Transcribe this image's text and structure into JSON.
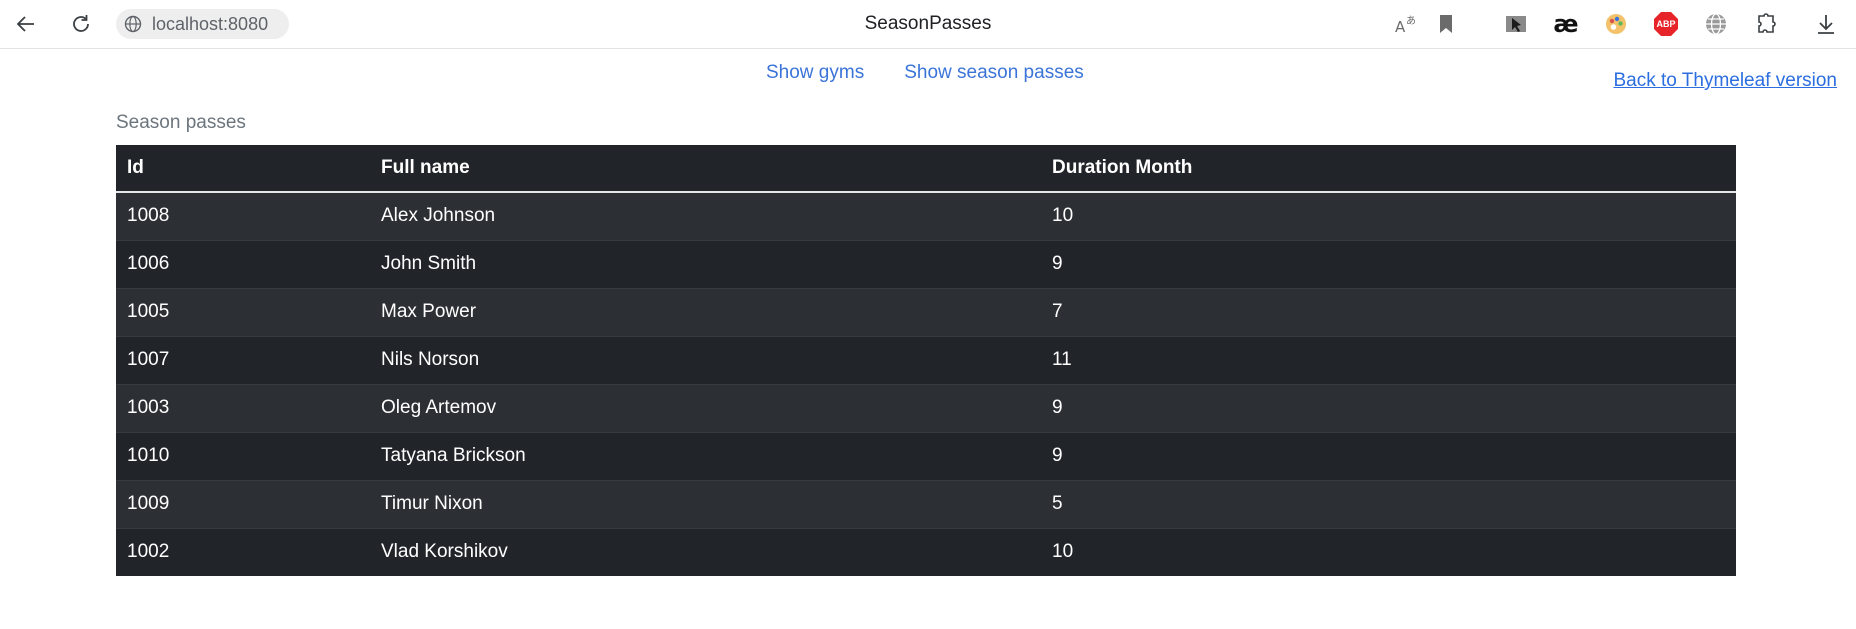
{
  "browser": {
    "url": "localhost:8080",
    "tab_title": "SeasonPasses",
    "icons": [
      "back-arrow-icon",
      "reload-icon",
      "site-info-icon",
      "translate-icon",
      "bookmark-icon",
      "cursor-extension-icon",
      "ae-extension-icon",
      "palette-extension-icon",
      "adblock-plus-icon",
      "globe-extension-icon",
      "extensions-puzzle-icon",
      "download-icon"
    ],
    "ae_label": "æ",
    "abp_label": "ABP"
  },
  "nav": {
    "show_gyms": "Show gyms",
    "show_season_passes": "Show season passes",
    "back_link": "Back to Thymeleaf version"
  },
  "section_title": "Season passes",
  "table": {
    "headers": [
      "Id",
      "Full name",
      "Duration Month"
    ],
    "rows": [
      [
        "1008",
        "Alex Johnson",
        "10"
      ],
      [
        "1006",
        "John Smith",
        "9"
      ],
      [
        "1005",
        "Max Power",
        "7"
      ],
      [
        "1007",
        "Nils Norson",
        "11"
      ],
      [
        "1003",
        "Oleg Artemov",
        "9"
      ],
      [
        "1010",
        "Tatyana Brickson",
        "9"
      ],
      [
        "1009",
        "Timur Nixon",
        "5"
      ],
      [
        "1002",
        "Vlad Korshikov",
        "10"
      ]
    ]
  },
  "colors": {
    "table_dark": "#212529",
    "table_striped": "#2c3034",
    "link": "#3b74d8"
  }
}
